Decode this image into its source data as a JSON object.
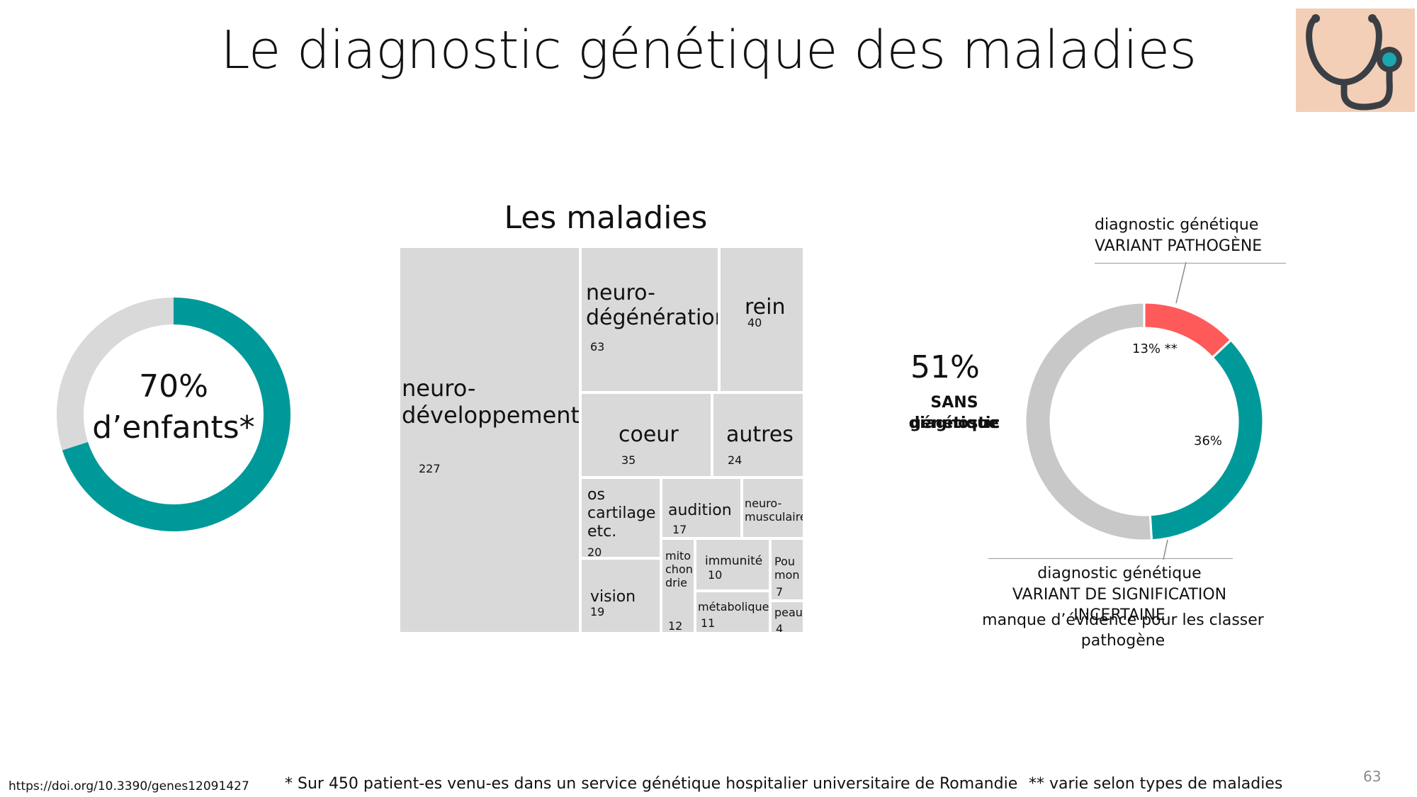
{
  "slide": {
    "title": "Le diagnostic génétique des maladies",
    "page_number": "63",
    "icon": "stethoscope-icon",
    "icon_bg": "#f2cfb6"
  },
  "left_donut": {
    "percent_label": "70%",
    "caption": "d’enfants*",
    "value_percent": 70,
    "color_main": "#00999a",
    "color_rest": "#d9d9d9"
  },
  "treemap": {
    "title": "Les maladies",
    "color": "#d9d9d9",
    "cells": [
      {
        "label": "neuro-\ndéveloppement",
        "value": 227
      },
      {
        "label": "neuro-\ndégénération",
        "value": 63
      },
      {
        "label": "rein",
        "value": 40
      },
      {
        "label": "coeur",
        "value": 35
      },
      {
        "label": "autres",
        "value": 24
      },
      {
        "label": "os\ncartilage\netc.",
        "value": 20
      },
      {
        "label": "audition",
        "value": 17
      },
      {
        "label": "neuro-\nmusculaire",
        "value": ""
      },
      {
        "label": "vision",
        "value": 19
      },
      {
        "label": "mito\nchon\ndrie",
        "value": 12
      },
      {
        "label": "immunité",
        "value": 10
      },
      {
        "label": "Pou\nmon",
        "value": 7
      },
      {
        "label": "métabolique",
        "value": 11
      },
      {
        "label": "peau",
        "value": 4
      }
    ]
  },
  "right_donut": {
    "center_percent": "51%",
    "center_caption_line1": "SANS diagnostic",
    "center_caption_line2": "génétique",
    "segments": [
      {
        "label": "13% **",
        "value": 13,
        "color": "#ff5a5a"
      },
      {
        "label": "36%",
        "value": 36,
        "color": "#00999a"
      },
      {
        "label": "",
        "value": 51,
        "color": "#c8c8c8"
      }
    ],
    "top_annotation": {
      "line1": "diagnostic génétique",
      "line2": "VARIANT PATHOGÈNE"
    },
    "bottom_annotation": {
      "line1": "diagnostic génétique",
      "line2": "VARIANT DE SIGNIFICATION INCERTAINE",
      "line3": "manque d’évidence pour les classer pathogène"
    }
  },
  "footer": {
    "doi": "https://doi.org/10.3390/genes12091427",
    "note1": "* Sur 450 patient-es venu-es dans un service génétique hospitalier universitaire de Romandie",
    "note2": "** varie selon types de maladies"
  }
}
